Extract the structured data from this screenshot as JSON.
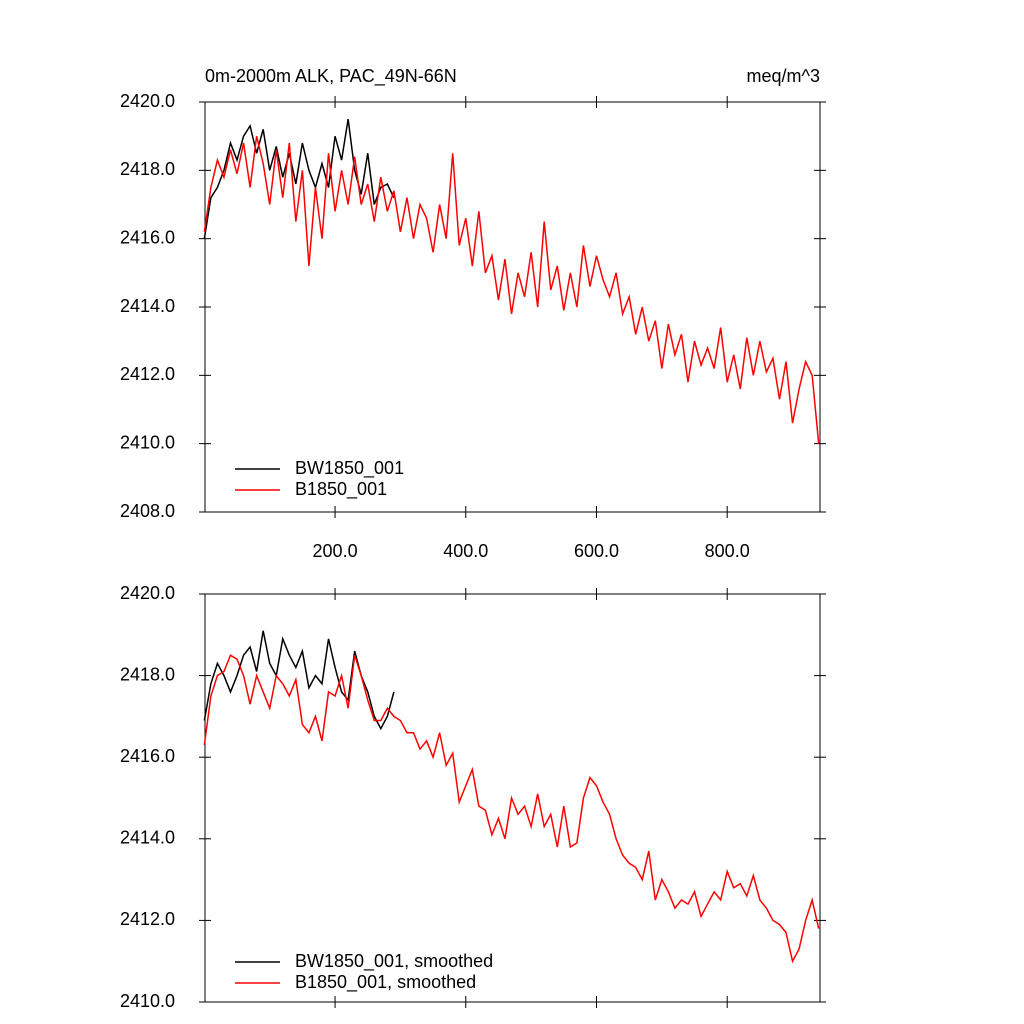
{
  "chart_data": [
    {
      "type": "line",
      "title": "0m-2000m ALK, PAC_49N-66N",
      "units": "meq/m^3",
      "x": [
        0,
        10,
        20,
        30,
        40,
        50,
        60,
        70,
        80,
        90,
        100,
        110,
        120,
        130,
        140,
        150,
        160,
        170,
        180,
        190,
        200,
        210,
        220,
        230,
        240,
        250,
        260,
        270,
        280,
        290,
        300,
        310,
        320,
        330,
        340,
        350,
        360,
        370,
        380,
        390,
        400,
        410,
        420,
        430,
        440,
        450,
        460,
        470,
        480,
        490,
        500,
        510,
        520,
        530,
        540,
        550,
        560,
        570,
        580,
        590,
        600,
        610,
        620,
        630,
        640,
        650,
        660,
        670,
        680,
        690,
        700,
        710,
        720,
        730,
        740,
        750,
        760,
        770,
        780,
        790,
        800,
        810,
        820,
        830,
        840,
        850,
        860,
        870,
        880,
        890,
        900,
        910,
        920,
        930,
        940
      ],
      "xlim": [
        1,
        942
      ],
      "xticks": [
        {
          "value": 200,
          "label": "200.0"
        },
        {
          "value": 400,
          "label": "400.0"
        },
        {
          "value": 600,
          "label": "600.0"
        },
        {
          "value": 800,
          "label": "800.0"
        }
      ],
      "ylim": [
        2408,
        2420
      ],
      "yticks": [
        {
          "value": 2408,
          "label": "2408.0"
        },
        {
          "value": 2410,
          "label": "2410.0"
        },
        {
          "value": 2412,
          "label": "2412.0"
        },
        {
          "value": 2414,
          "label": "2414.0"
        },
        {
          "value": 2416,
          "label": "2416.0"
        },
        {
          "value": 2418,
          "label": "2418.0"
        },
        {
          "value": 2420,
          "label": "2420.0"
        }
      ],
      "series": [
        {
          "name": "BW1850_001",
          "color": "#000000",
          "values": [
            2416.0,
            2417.2,
            2417.5,
            2418.0,
            2418.8,
            2418.3,
            2419.0,
            2419.3,
            2418.5,
            2419.2,
            2418.0,
            2418.7,
            2417.8,
            2418.5,
            2417.6,
            2418.8,
            2418.0,
            2417.5,
            2418.2,
            2417.5,
            2419.0,
            2418.3,
            2419.5,
            2418.0,
            2417.3,
            2418.5,
            2417.0,
            2417.5,
            2417.6,
            2417.2,
            null,
            null,
            null,
            null,
            null,
            null,
            null,
            null,
            null,
            null,
            null,
            null,
            null,
            null,
            null,
            null,
            null,
            null,
            null,
            null,
            null,
            null,
            null,
            null,
            null,
            null,
            null,
            null,
            null,
            null,
            null,
            null,
            null,
            null,
            null,
            null,
            null,
            null,
            null,
            null,
            null,
            null,
            null,
            null,
            null,
            null,
            null,
            null,
            null,
            null,
            null,
            null,
            null,
            null,
            null,
            null,
            null,
            null,
            null,
            null,
            null,
            null,
            null,
            null,
            null
          ]
        },
        {
          "name": "B1850_001",
          "color": "#ff0000",
          "values": [
            2416.2,
            2417.5,
            2418.3,
            2417.8,
            2418.6,
            2417.9,
            2418.8,
            2417.5,
            2419.0,
            2418.2,
            2417.0,
            2418.6,
            2417.2,
            2418.8,
            2416.5,
            2418.0,
            2415.2,
            2417.5,
            2416.0,
            2418.5,
            2416.8,
            2418.0,
            2417.0,
            2418.4,
            2417.0,
            2417.6,
            2416.5,
            2417.8,
            2416.8,
            2417.4,
            2416.2,
            2417.2,
            2416.0,
            2417.0,
            2416.6,
            2415.6,
            2417.0,
            2416.0,
            2418.5,
            2415.8,
            2416.6,
            2415.2,
            2416.8,
            2415.0,
            2415.5,
            2414.2,
            2415.4,
            2413.8,
            2415.0,
            2414.3,
            2415.6,
            2414.0,
            2416.5,
            2414.5,
            2415.2,
            2413.9,
            2415.0,
            2414.0,
            2415.8,
            2414.6,
            2415.5,
            2414.8,
            2414.3,
            2415.0,
            2413.8,
            2414.3,
            2413.2,
            2414.0,
            2413.0,
            2413.6,
            2412.2,
            2413.5,
            2412.6,
            2413.2,
            2411.8,
            2413.0,
            2412.3,
            2412.8,
            2412.2,
            2413.4,
            2411.8,
            2412.6,
            2411.6,
            2413.1,
            2412.0,
            2413.0,
            2412.1,
            2412.5,
            2411.3,
            2412.4,
            2410.6,
            2411.6,
            2412.4,
            2412.0,
            2410.0
          ]
        }
      ]
    },
    {
      "type": "line",
      "x": [
        0,
        10,
        20,
        30,
        40,
        50,
        60,
        70,
        80,
        90,
        100,
        110,
        120,
        130,
        140,
        150,
        160,
        170,
        180,
        190,
        200,
        210,
        220,
        230,
        240,
        250,
        260,
        270,
        280,
        290,
        300,
        310,
        320,
        330,
        340,
        350,
        360,
        370,
        380,
        390,
        400,
        410,
        420,
        430,
        440,
        450,
        460,
        470,
        480,
        490,
        500,
        510,
        520,
        530,
        540,
        550,
        560,
        570,
        580,
        590,
        600,
        610,
        620,
        630,
        640,
        650,
        660,
        670,
        680,
        690,
        700,
        710,
        720,
        730,
        740,
        750,
        760,
        770,
        780,
        790,
        800,
        810,
        820,
        830,
        840,
        850,
        860,
        870,
        880,
        890,
        900,
        910,
        920,
        930,
        940
      ],
      "xlim": [
        1,
        942
      ],
      "xticks": [
        200,
        400,
        600,
        800
      ],
      "ylim": [
        2410,
        2420
      ],
      "yticks": [
        {
          "value": 2410,
          "label": "2410.0"
        },
        {
          "value": 2412,
          "label": "2412.0"
        },
        {
          "value": 2414,
          "label": "2414.0"
        },
        {
          "value": 2416,
          "label": "2416.0"
        },
        {
          "value": 2418,
          "label": "2418.0"
        },
        {
          "value": 2420,
          "label": "2420.0"
        }
      ],
      "series": [
        {
          "name": "BW1850_001, smoothed",
          "color": "#000000",
          "values": [
            2416.9,
            2417.8,
            2418.3,
            2418.0,
            2417.6,
            2418.0,
            2418.5,
            2418.7,
            2418.1,
            2419.1,
            2418.3,
            2418.0,
            2418.9,
            2418.5,
            2418.2,
            2418.6,
            2417.7,
            2418.0,
            2417.8,
            2418.9,
            2418.2,
            2417.6,
            2417.4,
            2418.6,
            2418.0,
            2417.6,
            2417.0,
            2416.7,
            2417.0,
            2417.6,
            null,
            null,
            null,
            null,
            null,
            null,
            null,
            null,
            null,
            null,
            null,
            null,
            null,
            null,
            null,
            null,
            null,
            null,
            null,
            null,
            null,
            null,
            null,
            null,
            null,
            null,
            null,
            null,
            null,
            null,
            null,
            null,
            null,
            null,
            null,
            null,
            null,
            null,
            null,
            null,
            null,
            null,
            null,
            null,
            null,
            null,
            null,
            null,
            null,
            null,
            null,
            null,
            null,
            null,
            null,
            null,
            null,
            null,
            null,
            null,
            null,
            null,
            null,
            null,
            null
          ]
        },
        {
          "name": "B1850_001, smoothed",
          "color": "#ff0000",
          "values": [
            2416.3,
            2417.5,
            2418.0,
            2418.1,
            2418.5,
            2418.4,
            2418.0,
            2417.3,
            2418.0,
            2417.6,
            2417.2,
            2418.0,
            2417.8,
            2417.5,
            2417.9,
            2416.8,
            2416.6,
            2417.0,
            2416.4,
            2417.6,
            2417.5,
            2418.0,
            2417.2,
            2418.5,
            2418.0,
            2417.4,
            2416.9,
            2416.9,
            2417.2,
            2417.0,
            2416.9,
            2416.6,
            2416.6,
            2416.2,
            2416.4,
            2416.0,
            2416.6,
            2415.8,
            2416.1,
            2414.9,
            2415.3,
            2415.7,
            2414.8,
            2414.7,
            2414.1,
            2414.5,
            2414.0,
            2415.0,
            2414.6,
            2414.8,
            2414.3,
            2415.1,
            2414.3,
            2414.6,
            2413.8,
            2414.8,
            2413.8,
            2413.9,
            2415.0,
            2415.5,
            2415.3,
            2414.9,
            2414.6,
            2414.0,
            2413.6,
            2413.4,
            2413.3,
            2413.0,
            2413.7,
            2412.5,
            2413.0,
            2412.7,
            2412.3,
            2412.5,
            2412.4,
            2412.7,
            2412.1,
            2412.4,
            2412.7,
            2412.5,
            2413.2,
            2412.8,
            2412.9,
            2412.6,
            2413.1,
            2412.5,
            2412.3,
            2412.0,
            2411.9,
            2411.7,
            2411.0,
            2411.3,
            2412.0,
            2412.5,
            2411.8
          ]
        }
      ]
    }
  ]
}
